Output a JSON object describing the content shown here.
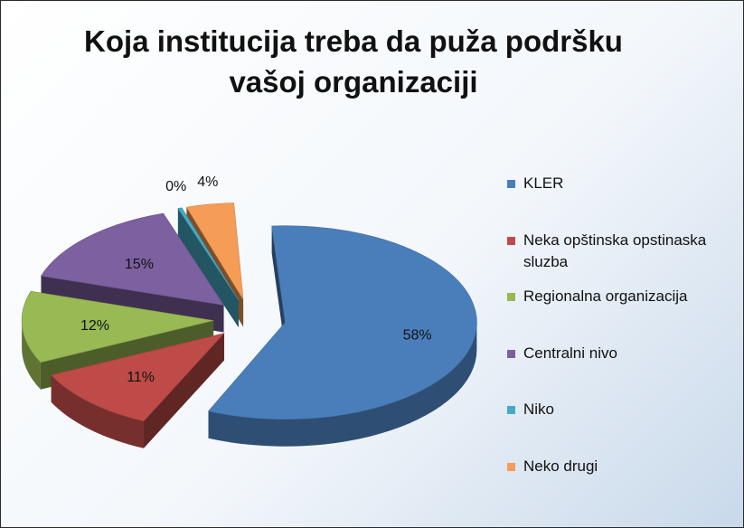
{
  "chart_data": {
    "type": "pie",
    "title_lines": [
      "Koja institucija treba da puža podršku",
      "vašoj organizaciji"
    ],
    "legend_position": "right",
    "style": "3d-exploded",
    "slices": [
      {
        "name": "KLER",
        "value": 58,
        "label": "58%",
        "color": "#4a7ebb"
      },
      {
        "name": "Neka opštinska opstinaska sluzba",
        "value": 11,
        "label": "11%",
        "color": "#be4b48"
      },
      {
        "name": "Regionalna organizacija",
        "value": 12,
        "label": "12%",
        "color": "#98b954"
      },
      {
        "name": "Centralni nivo",
        "value": 15,
        "label": "15%",
        "color": "#7d60a0"
      },
      {
        "name": "Niko",
        "value": 0,
        "label": "0%",
        "color": "#46aac5"
      },
      {
        "name": "Neko drugi",
        "value": 4,
        "label": "4%",
        "color": "#f59d56"
      }
    ]
  }
}
